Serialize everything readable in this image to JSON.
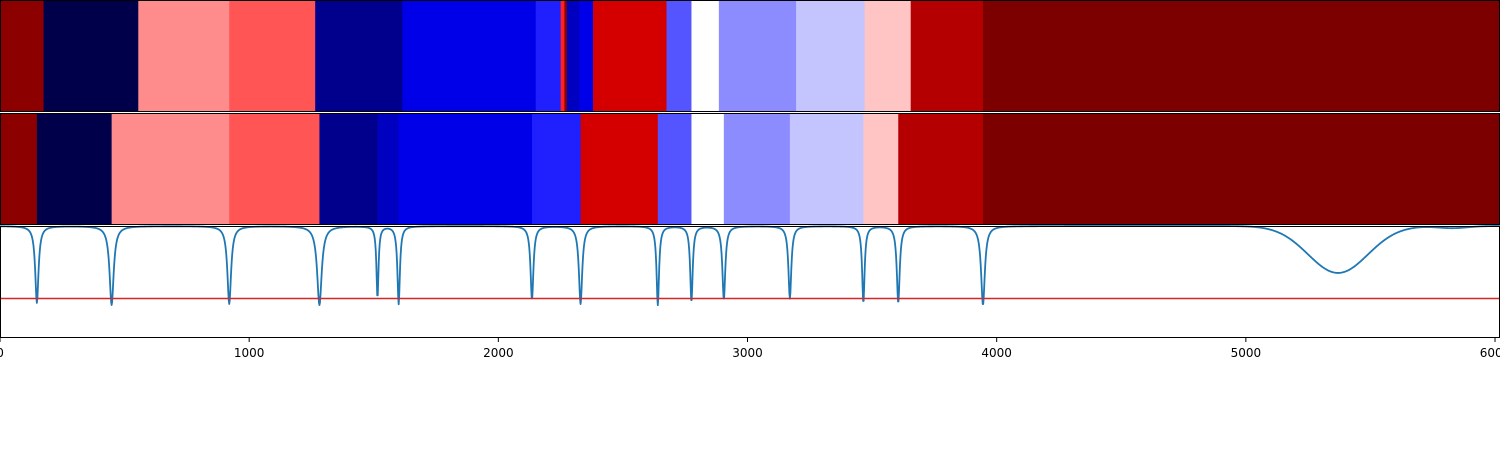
{
  "chart_data": {
    "type": "heatmap",
    "xlim": [
      0,
      6020
    ],
    "x_ticks": [
      0,
      1000,
      2000,
      3000,
      4000,
      5000,
      6000
    ],
    "x_tick_labels": [
      "0",
      "1000",
      "2000",
      "3000",
      "4000",
      "5000",
      "6000"
    ],
    "colormap": "seismic",
    "rows": [
      {
        "segments": [
          {
            "start": 0,
            "end": 175,
            "color": "#8c0000"
          },
          {
            "start": 175,
            "end": 555,
            "color": "#00004a"
          },
          {
            "start": 555,
            "end": 920,
            "color": "#ff8c8c"
          },
          {
            "start": 920,
            "end": 1265,
            "color": "#ff5555"
          },
          {
            "start": 1265,
            "end": 1615,
            "color": "#00008c"
          },
          {
            "start": 1615,
            "end": 2150,
            "color": "#0000e8"
          },
          {
            "start": 2150,
            "end": 2250,
            "color": "#2020ff"
          },
          {
            "start": 2250,
            "end": 2265,
            "color": "#ff2020"
          },
          {
            "start": 2265,
            "end": 2275,
            "color": "#8c0000"
          },
          {
            "start": 2275,
            "end": 2325,
            "color": "#0000c0"
          },
          {
            "start": 2325,
            "end": 2380,
            "color": "#0000e8"
          },
          {
            "start": 2380,
            "end": 2675,
            "color": "#d40000"
          },
          {
            "start": 2675,
            "end": 2775,
            "color": "#5555ff"
          },
          {
            "start": 2775,
            "end": 2885,
            "color": "#ffffff"
          },
          {
            "start": 2885,
            "end": 3195,
            "color": "#8c8cff"
          },
          {
            "start": 3195,
            "end": 3470,
            "color": "#c4c4ff"
          },
          {
            "start": 3470,
            "end": 3655,
            "color": "#ffc4c4"
          },
          {
            "start": 3655,
            "end": 3945,
            "color": "#b40000"
          },
          {
            "start": 3945,
            "end": 6020,
            "color": "#7c0000"
          }
        ]
      },
      {
        "segments": [
          {
            "start": 0,
            "end": 148,
            "color": "#8c0000"
          },
          {
            "start": 148,
            "end": 448,
            "color": "#00004a"
          },
          {
            "start": 448,
            "end": 920,
            "color": "#ff8c8c"
          },
          {
            "start": 920,
            "end": 1282,
            "color": "#ff5555"
          },
          {
            "start": 1282,
            "end": 1515,
            "color": "#00008c"
          },
          {
            "start": 1515,
            "end": 1600,
            "color": "#0000c0"
          },
          {
            "start": 1600,
            "end": 2135,
            "color": "#0000e8"
          },
          {
            "start": 2135,
            "end": 2330,
            "color": "#2020ff"
          },
          {
            "start": 2330,
            "end": 2640,
            "color": "#d40000"
          },
          {
            "start": 2640,
            "end": 2775,
            "color": "#5555ff"
          },
          {
            "start": 2775,
            "end": 2905,
            "color": "#ffffff"
          },
          {
            "start": 2905,
            "end": 3170,
            "color": "#8c8cff"
          },
          {
            "start": 3170,
            "end": 3465,
            "color": "#c4c4ff"
          },
          {
            "start": 3465,
            "end": 3605,
            "color": "#ffc4c4"
          },
          {
            "start": 3605,
            "end": 3945,
            "color": "#b40000"
          },
          {
            "start": 3945,
            "end": 6020,
            "color": "#7c0000"
          }
        ]
      }
    ],
    "line_series": {
      "color": "#1f77b4",
      "baseline": 1.0,
      "ylim": [
        -0.05,
        1.0
      ],
      "spikes": [
        {
          "x": 148,
          "depth": 0.72,
          "width": 8
        },
        {
          "x": 448,
          "depth": 0.74,
          "width": 10
        },
        {
          "x": 920,
          "depth": 0.73,
          "width": 9
        },
        {
          "x": 1282,
          "depth": 0.74,
          "width": 11
        },
        {
          "x": 1515,
          "depth": 0.67,
          "width": 5
        },
        {
          "x": 1600,
          "depth": 0.73,
          "width": 6
        },
        {
          "x": 2135,
          "depth": 0.69,
          "width": 7
        },
        {
          "x": 2330,
          "depth": 0.73,
          "width": 8
        },
        {
          "x": 2640,
          "depth": 0.74,
          "width": 6
        },
        {
          "x": 2775,
          "depth": 0.71,
          "width": 6
        },
        {
          "x": 2905,
          "depth": 0.69,
          "width": 7
        },
        {
          "x": 3170,
          "depth": 0.68,
          "width": 7
        },
        {
          "x": 3465,
          "depth": 0.72,
          "width": 6
        },
        {
          "x": 3605,
          "depth": 0.72,
          "width": 7
        },
        {
          "x": 3945,
          "depth": 0.74,
          "width": 9
        }
      ],
      "bumps": [
        {
          "x": 5370,
          "depth": 0.44,
          "width": 120
        },
        {
          "x": 5830,
          "depth": 0.02,
          "width": 60
        }
      ]
    },
    "threshold_line": {
      "y": 0.32,
      "color": "#d62728"
    }
  }
}
